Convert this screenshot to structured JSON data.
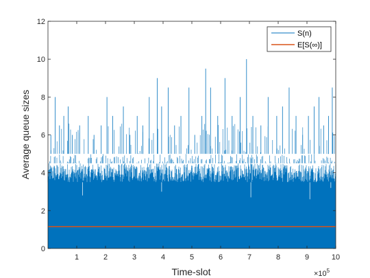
{
  "chart_data": {
    "type": "line",
    "xlabel": "Time-slot",
    "ylabel": "Average queue sizes",
    "x_exponent_label": "×10",
    "x_exponent_power": "5",
    "xlim": [
      0,
      1000000
    ],
    "ylim": [
      0,
      12
    ],
    "x_ticks": [
      100000,
      200000,
      300000,
      400000,
      500000,
      600000,
      700000,
      800000,
      900000,
      1000000
    ],
    "x_tick_labels": [
      "1",
      "2",
      "3",
      "4",
      "5",
      "6",
      "7",
      "8",
      "9",
      "10"
    ],
    "y_ticks": [
      0,
      2,
      4,
      6,
      8,
      10,
      12
    ],
    "y_tick_labels": [
      "0",
      "2",
      "4",
      "6",
      "8",
      "10",
      "12"
    ],
    "grid": false,
    "legend_position": "top-right",
    "colors": {
      "series": "#0072BD",
      "expectation": "#D95319",
      "axis": "#262626"
    },
    "series": [
      {
        "name": "S(n)",
        "color": "#0072BD",
        "dense_band_max": 3.5,
        "common_band_max": 4.5,
        "frequent_band_max": 5.0,
        "peaks": [
          {
            "x": 10000,
            "y": 6.0
          },
          {
            "x": 25000,
            "y": 8.0
          },
          {
            "x": 40000,
            "y": 6.5
          },
          {
            "x": 55000,
            "y": 7.0
          },
          {
            "x": 70000,
            "y": 7.5
          },
          {
            "x": 85000,
            "y": 6.0
          },
          {
            "x": 110000,
            "y": 6.5
          },
          {
            "x": 140000,
            "y": 7.0
          },
          {
            "x": 160000,
            "y": 6.0
          },
          {
            "x": 185000,
            "y": 6.5
          },
          {
            "x": 205000,
            "y": 8.0
          },
          {
            "x": 225000,
            "y": 7.0
          },
          {
            "x": 262000,
            "y": 7.5
          },
          {
            "x": 285000,
            "y": 6.0
          },
          {
            "x": 310000,
            "y": 7.0
          },
          {
            "x": 330000,
            "y": 6.5
          },
          {
            "x": 352000,
            "y": 8.0
          },
          {
            "x": 380000,
            "y": 9.0
          },
          {
            "x": 395000,
            "y": 7.5
          },
          {
            "x": 418000,
            "y": 8.5
          },
          {
            "x": 440000,
            "y": 6.5
          },
          {
            "x": 462000,
            "y": 7.0
          },
          {
            "x": 490000,
            "y": 8.5
          },
          {
            "x": 510000,
            "y": 6.0
          },
          {
            "x": 535000,
            "y": 7.0
          },
          {
            "x": 548000,
            "y": 9.5
          },
          {
            "x": 565000,
            "y": 8.5
          },
          {
            "x": 590000,
            "y": 7.0
          },
          {
            "x": 615000,
            "y": 9.0
          },
          {
            "x": 640000,
            "y": 7.0
          },
          {
            "x": 668000,
            "y": 8.0
          },
          {
            "x": 690000,
            "y": 10.0
          },
          {
            "x": 712000,
            "y": 7.0
          },
          {
            "x": 740000,
            "y": 6.5
          },
          {
            "x": 765000,
            "y": 8.0
          },
          {
            "x": 795000,
            "y": 7.0
          },
          {
            "x": 815000,
            "y": 7.5
          },
          {
            "x": 838000,
            "y": 8.5
          },
          {
            "x": 862000,
            "y": 7.0
          },
          {
            "x": 885000,
            "y": 6.0
          },
          {
            "x": 905000,
            "y": 7.0
          },
          {
            "x": 925000,
            "y": 7.5
          },
          {
            "x": 942000,
            "y": 8.0
          },
          {
            "x": 958000,
            "y": 6.5
          },
          {
            "x": 975000,
            "y": 7.0
          },
          {
            "x": 988000,
            "y": 8.5
          }
        ],
        "dips": [
          {
            "x": 120000,
            "y": 2.8
          },
          {
            "x": 395000,
            "y": 3.0
          },
          {
            "x": 705000,
            "y": 2.7
          },
          {
            "x": 910000,
            "y": 2.6
          },
          {
            "x": 983000,
            "y": 3.2
          }
        ]
      },
      {
        "name": "E[S(∞)]",
        "color": "#D95319",
        "y": 1.15
      }
    ]
  }
}
